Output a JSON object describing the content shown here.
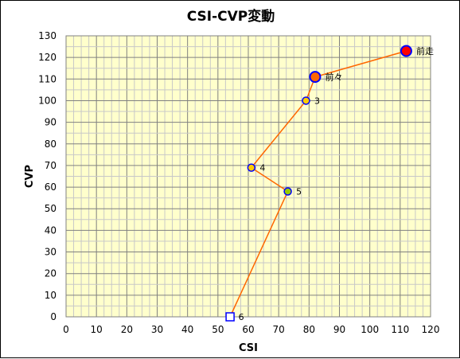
{
  "chart_data": {
    "type": "scatter",
    "title": "CSI-CVP変動",
    "xlabel": "CSI",
    "ylabel": "CVP",
    "xlim": [
      0,
      120
    ],
    "ylim": [
      0,
      130
    ],
    "xticks": [
      0,
      10,
      20,
      30,
      40,
      50,
      60,
      70,
      80,
      90,
      100,
      110,
      120
    ],
    "yticks": [
      0,
      10,
      20,
      30,
      40,
      50,
      60,
      70,
      80,
      90,
      100,
      110,
      120,
      130
    ],
    "grid": true,
    "plot_background": "#ffffcc",
    "line_color": "#ff6600",
    "points": [
      {
        "label": "前走",
        "x": 112,
        "y": 123,
        "marker": "circle",
        "fill": "#ff0000",
        "stroke": "#0000ff",
        "size": "large"
      },
      {
        "label": "前々",
        "x": 82,
        "y": 111,
        "marker": "circle",
        "fill": "#ff6600",
        "stroke": "#0000ff",
        "size": "large"
      },
      {
        "label": "3",
        "x": 79,
        "y": 100,
        "marker": "circle",
        "fill": "#ffcc00",
        "stroke": "#0000ff",
        "size": "small"
      },
      {
        "label": "4",
        "x": 61,
        "y": 69,
        "marker": "circle",
        "fill": "#ffcc00",
        "stroke": "#0000ff",
        "size": "small"
      },
      {
        "label": "5",
        "x": 73,
        "y": 58,
        "marker": "circle",
        "fill": "#99cc00",
        "stroke": "#0000ff",
        "size": "small"
      },
      {
        "label": "6",
        "x": 54,
        "y": 0,
        "marker": "square",
        "fill": "#ffffff",
        "stroke": "#0000ff",
        "size": "small"
      }
    ]
  }
}
